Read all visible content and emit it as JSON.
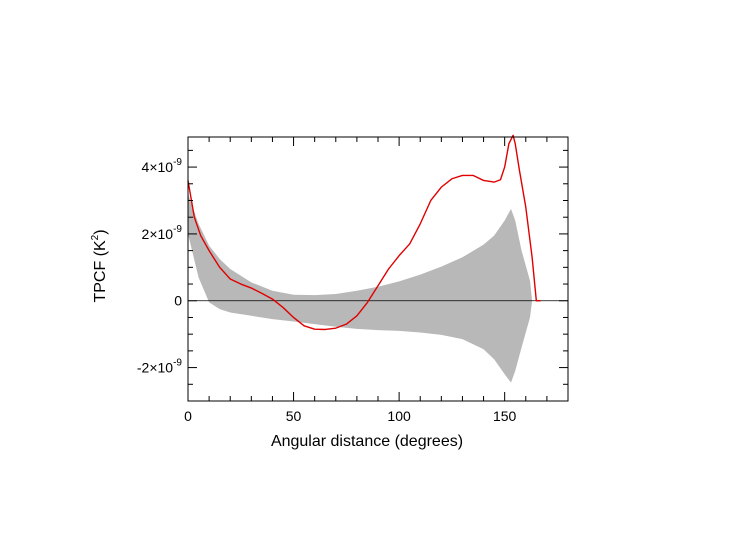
{
  "chart_data": {
    "type": "line",
    "title": "",
    "xlabel": "Angular distance (degrees)",
    "ylabel_main": "TPCF (K",
    "ylabel_sup": "2",
    "ylabel_close": ")",
    "xlim": [
      0,
      180
    ],
    "ylim": [
      -3e-09,
      4.9e-09
    ],
    "grid": false,
    "legend": "none",
    "x_ticks": [
      {
        "value": 0,
        "label": "0"
      },
      {
        "value": 50,
        "label": "50"
      },
      {
        "value": 100,
        "label": "100"
      },
      {
        "value": 150,
        "label": "150"
      }
    ],
    "y_ticks": [
      {
        "value": 4e-09,
        "mant": "4",
        "exp": "-9"
      },
      {
        "value": 2e-09,
        "mant": "2",
        "exp": "-9"
      },
      {
        "value": 0,
        "mant": "0",
        "exp": ""
      },
      {
        "value": -2e-09,
        "mant": "-2",
        "exp": "-9"
      }
    ],
    "y_times": "×10",
    "zero_line": {
      "y": 0,
      "color": "#000000"
    },
    "band": {
      "color": "#b8b8b8",
      "x": [
        0,
        5,
        10,
        15,
        20,
        30,
        40,
        50,
        60,
        70,
        80,
        90,
        100,
        110,
        120,
        130,
        140,
        145,
        150,
        153,
        155,
        158,
        162,
        163
      ],
      "upper": [
        3.2e-09,
        2.3e-09,
        1.65e-09,
        1.25e-09,
        9.5e-10,
        5.5e-10,
        3e-10,
        1.8e-10,
        1.7e-10,
        2e-10,
        3e-10,
        4.2e-10,
        5.8e-10,
        7.8e-10,
        1.02e-09,
        1.3e-09,
        1.68e-09,
        1.95e-09,
        2.4e-09,
        2.75e-09,
        2.4e-09,
        1.5e-09,
        6e-10,
        0.0
      ],
      "lower": [
        2e-09,
        7e-10,
        -5e-11,
        -2.5e-10,
        -3.5e-10,
        -4.5e-10,
        -5.5e-10,
        -6.2e-10,
        -7e-10,
        -7.8e-10,
        -8.4e-10,
        -8.8e-10,
        -9e-10,
        -9.5e-10,
        -1.02e-09,
        -1.15e-09,
        -1.45e-09,
        -1.75e-09,
        -2.2e-09,
        -2.45e-09,
        -2.1e-09,
        -1.4e-09,
        -5e-10,
        0.0
      ]
    },
    "series": [
      {
        "color": "#e00000",
        "x": [
          0,
          3,
          6,
          10,
          15,
          20,
          25,
          30,
          35,
          40,
          45,
          50,
          55,
          60,
          65,
          70,
          75,
          80,
          85,
          90,
          95,
          100,
          105,
          110,
          115,
          120,
          125,
          130,
          135,
          140,
          145,
          148,
          150,
          152,
          154,
          155,
          157,
          160,
          163,
          165,
          167
        ],
        "y": [
          3.6e-09,
          2.5e-09,
          1.95e-09,
          1.5e-09,
          1e-09,
          6.5e-10,
          5e-10,
          3.8e-10,
          2.2e-10,
          5e-11,
          -2e-10,
          -5e-10,
          -7.5e-10,
          -8.5e-10,
          -8.6e-10,
          -8.2e-10,
          -7e-10,
          -4.5e-10,
          -5e-11,
          4.5e-10,
          9.5e-10,
          1.35e-09,
          1.7e-09,
          2.3e-09,
          3e-09,
          3.4e-09,
          3.65e-09,
          3.75e-09,
          3.75e-09,
          3.6e-09,
          3.55e-09,
          3.62e-09,
          4e-09,
          4.7e-09,
          4.95e-09,
          4.7e-09,
          3.9e-09,
          2.8e-09,
          1.3e-09,
          0.0,
          0.0
        ]
      }
    ]
  }
}
